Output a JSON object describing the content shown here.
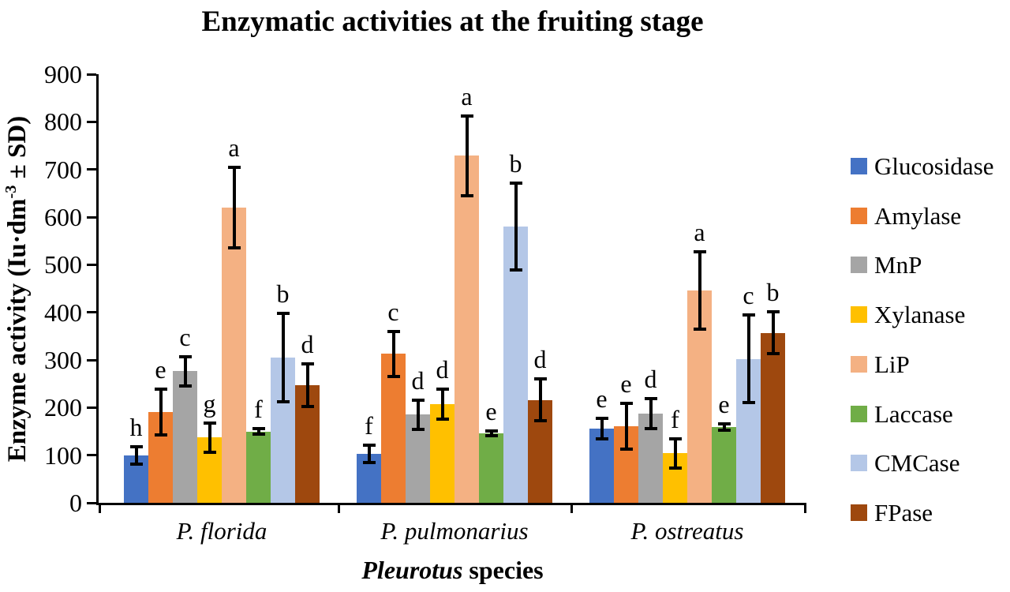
{
  "figure": {
    "title": "Enzymatic activities at the fruiting stage",
    "y_axis_label": {
      "prefix": "Enzyme activity (Iu·dm",
      "sup": "-3",
      "suffix": " ± SD)"
    },
    "x_axis_label": {
      "italic": "Pleurotus",
      "rest": " species"
    }
  },
  "chart_data": {
    "type": "bar",
    "title": "Enzymatic activities at the fruiting stage",
    "xlabel": "Pleurotus species",
    "ylabel": "Enzyme activity (Iu·dm-3 ± SD)",
    "ylim": [
      0,
      900
    ],
    "yticks": [
      0,
      100,
      200,
      300,
      400,
      500,
      600,
      700,
      800,
      900
    ],
    "grid": false,
    "legend_position": "right",
    "error_bars": true,
    "categories": [
      "P. florida",
      "P. pulmonarius",
      "P. ostreatus"
    ],
    "series": [
      {
        "name": "Glucosidase",
        "color": "#4472C4",
        "values": [
          100,
          103,
          156
        ],
        "errors": [
          18,
          18,
          21
        ],
        "letters": [
          "h",
          "f",
          "e"
        ]
      },
      {
        "name": "Amylase",
        "color": "#ED7D31",
        "values": [
          191,
          313,
          161
        ],
        "errors": [
          48,
          47,
          48
        ],
        "letters": [
          "e",
          "c",
          "e"
        ]
      },
      {
        "name": "MnP",
        "color": "#A5A5A5",
        "values": [
          276,
          185,
          187
        ],
        "errors": [
          31,
          31,
          32
        ],
        "letters": [
          "c",
          "d",
          "d"
        ]
      },
      {
        "name": "Xylanase",
        "color": "#FFC000",
        "values": [
          137,
          207,
          104
        ],
        "errors": [
          31,
          31,
          31
        ],
        "letters": [
          "g",
          "d",
          "f"
        ]
      },
      {
        "name": "LiP",
        "color": "#F4B183",
        "values": [
          620,
          729,
          446
        ],
        "errors": [
          84,
          84,
          81
        ],
        "letters": [
          "a",
          "a",
          "a"
        ]
      },
      {
        "name": "Laccase",
        "color": "#70AD47",
        "values": [
          150,
          146,
          159
        ],
        "errors": [
          5,
          5,
          6
        ],
        "letters": [
          "f",
          "e",
          "e"
        ]
      },
      {
        "name": "CMCase",
        "color": "#B4C7E7",
        "values": [
          305,
          580,
          302
        ],
        "errors": [
          92,
          91,
          92
        ],
        "letters": [
          "b",
          "b",
          "c"
        ]
      },
      {
        "name": "FPase",
        "color": "#9E480E",
        "values": [
          247,
          216,
          357
        ],
        "errors": [
          45,
          44,
          44
        ],
        "letters": [
          "d",
          "d",
          "b"
        ]
      }
    ]
  }
}
